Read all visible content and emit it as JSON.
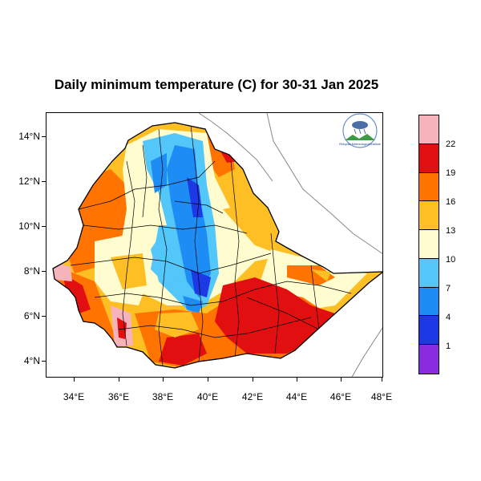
{
  "title": "Daily minimum temperature (C) for 30-31 Jan 2025",
  "map": {
    "region": "Ethiopia",
    "lon_range": [
      33,
      48.2
    ],
    "lat_range": [
      3.2,
      15
    ],
    "x_ticks": [
      "34°E",
      "36°E",
      "38°E",
      "40°E",
      "42°E",
      "44°E",
      "46°E",
      "48°E"
    ],
    "y_ticks": [
      "14°N",
      "12°N",
      "10°N",
      "8°N",
      "6°N",
      "4°N"
    ],
    "logo_caption": "Ethiopian Meteorological Institute"
  },
  "colorbar": {
    "labels": [
      "22",
      "19",
      "16",
      "13",
      "10",
      "7",
      "4",
      "1"
    ],
    "colors": [
      "#f7b3bb",
      "#e10f0f",
      "#ff7400",
      "#fdbf23",
      "#fffdcf",
      "#53c6fa",
      "#1e8cf5",
      "#1d39e6",
      "#8a2be2"
    ]
  }
}
